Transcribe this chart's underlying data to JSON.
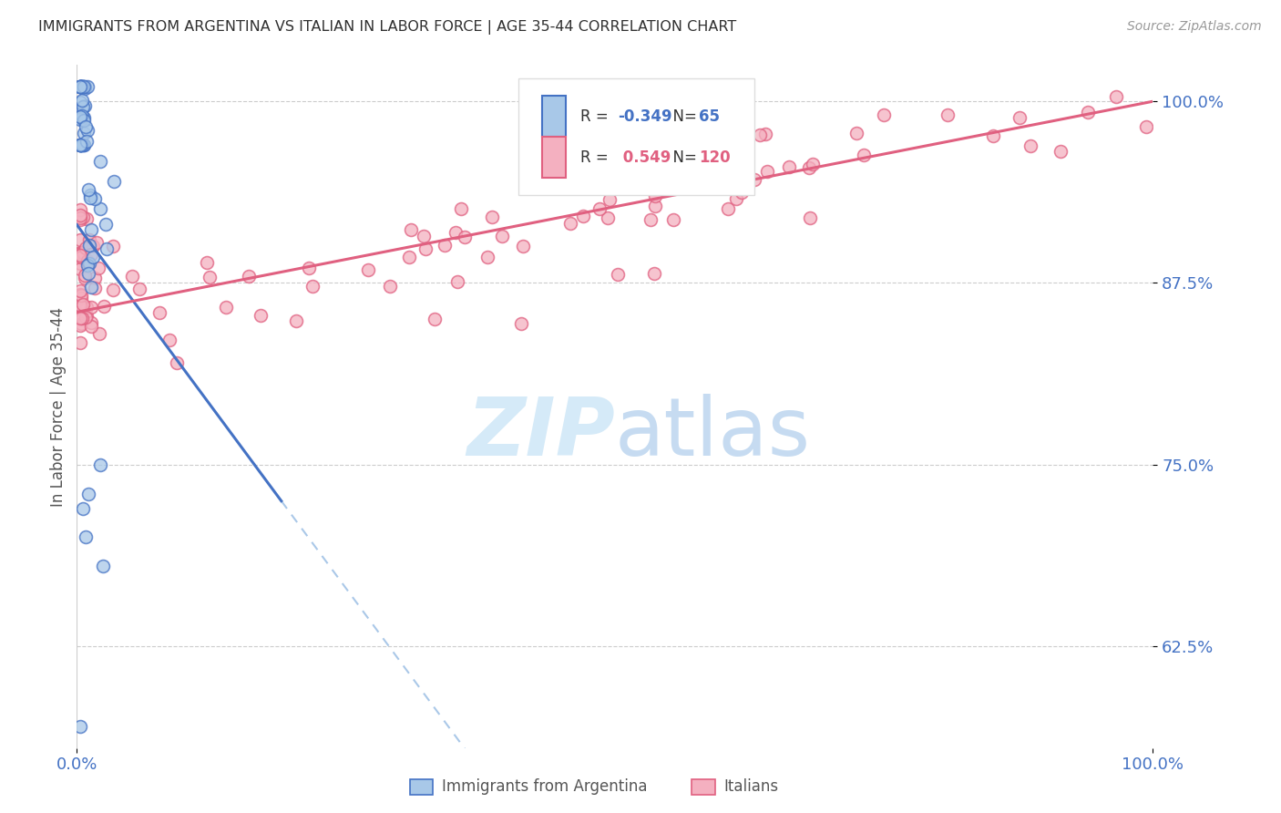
{
  "title": "IMMIGRANTS FROM ARGENTINA VS ITALIAN IN LABOR FORCE | AGE 35-44 CORRELATION CHART",
  "source": "Source: ZipAtlas.com",
  "ylabel": "In Labor Force | Age 35-44",
  "xlim": [
    0.0,
    1.0
  ],
  "ylim": [
    0.555,
    1.025
  ],
  "yticks": [
    0.625,
    0.75,
    0.875,
    1.0
  ],
  "ytick_labels": [
    "62.5%",
    "75.0%",
    "87.5%",
    "100.0%"
  ],
  "legend_label1": "Immigrants from Argentina",
  "legend_label2": "Italians",
  "r_argentina": -0.349,
  "n_argentina": 65,
  "r_italian": 0.549,
  "n_italian": 120,
  "color_argentina": "#a8c8e8",
  "color_italian": "#f4b0c0",
  "line_argentina": "#4472c4",
  "line_italian": "#e06080",
  "background_color": "#ffffff",
  "title_color": "#303030",
  "axis_color": "#4472c4",
  "grid_color": "#cccccc",
  "watermark_color": "#d5eaf8"
}
